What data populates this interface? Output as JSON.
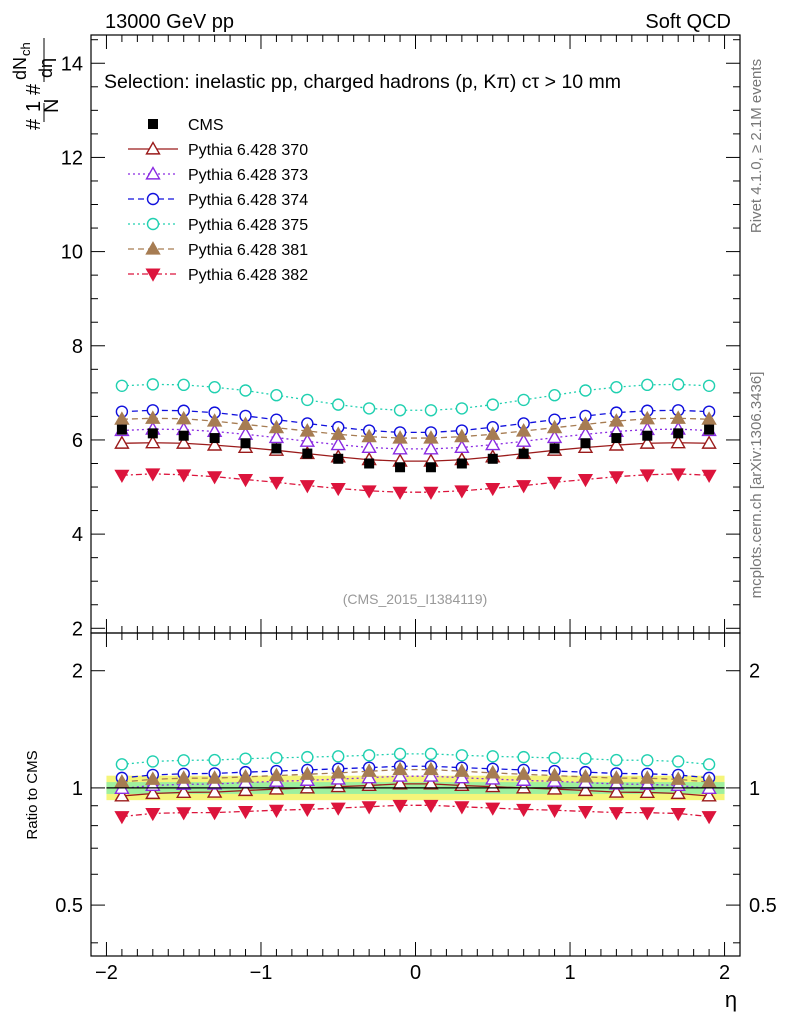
{
  "header": {
    "left": "13000 GeV pp",
    "right": "Soft QCD"
  },
  "side_labels": {
    "rivet": "Rivet 4.1.0, ≥ 2.1M events",
    "mcplots": "mcplots.cern.ch [arXiv:1306.3436]"
  },
  "selection_text": "Selection: inelastic pp, charged hadrons (p, Kπ) cτ > 10 mm",
  "watermark": "(CMS_2015_I1384119)",
  "ylabel_main": "#1/N# dN_ch/dη",
  "ylabel_ratio": "Ratio to CMS",
  "xlabel": "η",
  "colors": {
    "cms": "#000000",
    "p370": "#9b1b1b",
    "p373": "#8a2be2",
    "p374": "#1010dd",
    "p375": "#20d0b0",
    "p381": "#a67c52",
    "p382": "#dc143c",
    "band_outer": "#f5f57a",
    "band_inner": "#9ef09e"
  },
  "chart_data": {
    "type": "line",
    "title": "Selection: inelastic pp, charged hadrons (p, Kπ) cτ > 10 mm",
    "xlabel": "η",
    "ylabel": "1/N dN_ch/dη",
    "xlim": [
      -2.1,
      2.1
    ],
    "ylim": [
      1.9,
      14.6
    ],
    "ratio_ylim": [
      0.37,
      2.5
    ],
    "x_ticks": [
      "−2",
      "−1",
      "0",
      "1",
      "2"
    ],
    "y_ticks": [
      "2",
      "4",
      "6",
      "8",
      "10",
      "12",
      "14"
    ],
    "ratio_ticks": [
      "0.5",
      "1",
      "2"
    ],
    "x": [
      -1.9,
      -1.7,
      -1.5,
      -1.3,
      -1.1,
      -0.9,
      -0.7,
      -0.5,
      -0.3,
      -0.1,
      0.1,
      0.3,
      0.5,
      0.7,
      0.9,
      1.1,
      1.3,
      1.5,
      1.7,
      1.9
    ],
    "reference": "CMS",
    "series": [
      {
        "name": "CMS",
        "marker": "square",
        "dash": "",
        "color_key": "cms",
        "values": [
          6.22,
          6.14,
          6.09,
          6.04,
          5.93,
          5.82,
          5.71,
          5.6,
          5.5,
          5.42,
          5.42,
          5.5,
          5.6,
          5.71,
          5.82,
          5.93,
          6.04,
          6.09,
          6.14,
          6.22
        ]
      },
      {
        "name": "Pythia 6.428 370",
        "marker": "triangle-open",
        "dash": "",
        "color_key": "p370",
        "values": [
          5.93,
          5.94,
          5.93,
          5.89,
          5.84,
          5.78,
          5.71,
          5.64,
          5.58,
          5.55,
          5.55,
          5.58,
          5.64,
          5.71,
          5.78,
          5.84,
          5.89,
          5.93,
          5.94,
          5.93
        ]
      },
      {
        "name": "Pythia 6.428 373",
        "marker": "triangle-open",
        "dash": "2,3",
        "color_key": "p373",
        "values": [
          6.2,
          6.23,
          6.22,
          6.18,
          6.12,
          6.05,
          5.97,
          5.9,
          5.84,
          5.81,
          5.81,
          5.84,
          5.9,
          5.97,
          6.05,
          6.12,
          6.18,
          6.22,
          6.23,
          6.2
        ]
      },
      {
        "name": "Pythia 6.428 374",
        "marker": "circle-open",
        "dash": "6,4",
        "color_key": "p374",
        "values": [
          6.6,
          6.63,
          6.62,
          6.58,
          6.51,
          6.43,
          6.35,
          6.27,
          6.2,
          6.16,
          6.16,
          6.2,
          6.27,
          6.35,
          6.43,
          6.51,
          6.58,
          6.62,
          6.63,
          6.6
        ]
      },
      {
        "name": "Pythia 6.428 375",
        "marker": "circle-open",
        "dash": "2,3",
        "color_key": "p375",
        "values": [
          7.15,
          7.18,
          7.17,
          7.12,
          7.05,
          6.95,
          6.85,
          6.75,
          6.67,
          6.63,
          6.63,
          6.67,
          6.75,
          6.85,
          6.95,
          7.05,
          7.12,
          7.17,
          7.18,
          7.15
        ]
      },
      {
        "name": "Pythia 6.428 381",
        "marker": "triangle-filled",
        "dash": "6,4",
        "color_key": "p381",
        "values": [
          6.44,
          6.46,
          6.45,
          6.4,
          6.33,
          6.26,
          6.19,
          6.12,
          6.07,
          6.04,
          6.04,
          6.07,
          6.12,
          6.19,
          6.26,
          6.33,
          6.4,
          6.45,
          6.46,
          6.44
        ]
      },
      {
        "name": "Pythia 6.428 382",
        "marker": "triangle-down-filled",
        "dash": "6,3,2,3",
        "color_key": "p382",
        "values": [
          5.25,
          5.28,
          5.26,
          5.22,
          5.16,
          5.1,
          5.03,
          4.97,
          4.92,
          4.89,
          4.89,
          4.92,
          4.97,
          5.03,
          5.1,
          5.16,
          5.22,
          5.26,
          5.28,
          5.25
        ]
      }
    ]
  }
}
